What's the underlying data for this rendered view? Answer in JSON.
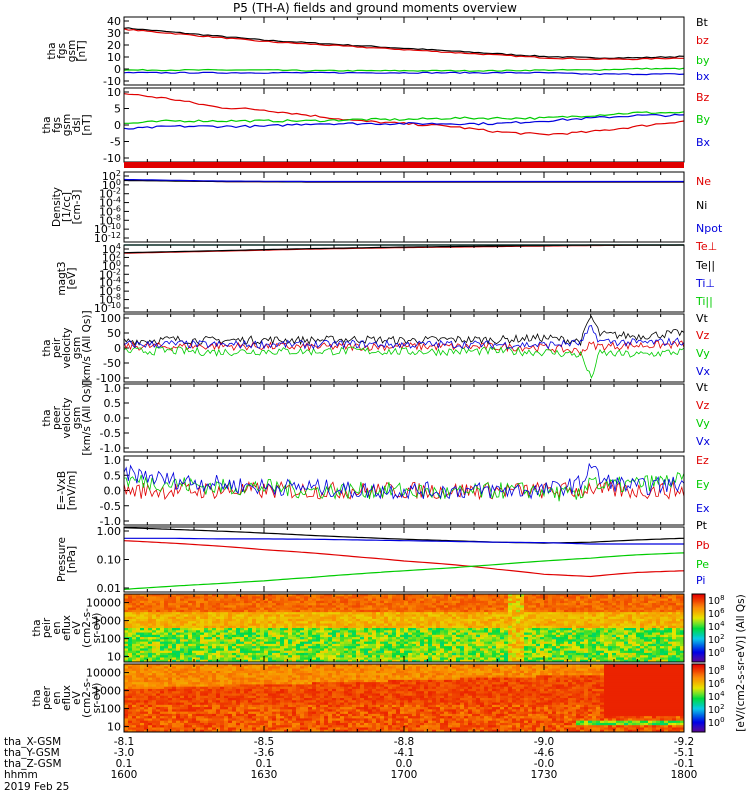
{
  "title": "P5 (TH-A) fields and ground moments overview",
  "colors": {
    "black": "#000000",
    "red": "#e00000",
    "green": "#00cc00",
    "blue": "#0000dd"
  },
  "chart_data": [
    {
      "type": "line",
      "id": "fgs_total",
      "ylabel": [
        "tha",
        "fgs",
        "gsm",
        "[nT]"
      ],
      "ylim": [
        -10,
        40
      ],
      "yticks": [
        "40",
        "30",
        "20",
        "10",
        "0",
        "-10"
      ],
      "legend": [
        "Bt",
        "bz",
        "by",
        "bx"
      ],
      "x": [
        0,
        10,
        20,
        30,
        40,
        50,
        60,
        70,
        80,
        90,
        100,
        110,
        120
      ],
      "series": [
        {
          "name": "Bt",
          "color": "#000000",
          "values": [
            32,
            29,
            26,
            23,
            21,
            19,
            17,
            15,
            13,
            11,
            10,
            10,
            11
          ]
        },
        {
          "name": "bz",
          "color": "#e00000",
          "values": [
            31,
            28,
            25,
            22,
            20,
            18,
            16,
            14,
            12,
            10,
            9,
            9,
            10
          ]
        },
        {
          "name": "by",
          "color": "#00cc00",
          "values": [
            1,
            1,
            1,
            1,
            0.5,
            0.5,
            0.5,
            0.5,
            0.5,
            1,
            1,
            2,
            2
          ]
        },
        {
          "name": "bx",
          "color": "#0000dd",
          "values": [
            -1,
            -1,
            -1,
            -1,
            -1,
            -1,
            -1,
            -1,
            -1,
            -1,
            -2,
            -2,
            -2
          ]
        }
      ]
    },
    {
      "type": "line",
      "id": "fgs_comp",
      "ylabel": [
        "tha",
        "fgs",
        "gsm",
        "dsl",
        "[nT]"
      ],
      "ylim": [
        -15,
        12
      ],
      "yticks": [
        "10",
        "5",
        "0",
        "-5",
        "-10"
      ],
      "legend": [
        "Bz",
        "By",
        "Bx"
      ],
      "x": [
        0,
        10,
        20,
        30,
        40,
        50,
        60,
        70,
        80,
        90,
        100,
        110,
        120
      ],
      "series": [
        {
          "name": "Bz",
          "color": "#e00000",
          "values": [
            10,
            8,
            5,
            4,
            2,
            0,
            -1,
            -2,
            -4,
            -5,
            -4,
            -2,
            0
          ]
        },
        {
          "name": "By",
          "color": "#00cc00",
          "values": [
            -1,
            0,
            0,
            0,
            0,
            0.5,
            0.5,
            1,
            1,
            1,
            2,
            3,
            3
          ]
        },
        {
          "name": "Bx",
          "color": "#0000dd",
          "values": [
            -3,
            -2,
            -2,
            -2,
            -1,
            -1,
            -1,
            -1,
            -1,
            0,
            1,
            2,
            2
          ]
        }
      ]
    },
    {
      "type": "line",
      "id": "density",
      "ylabel": [
        "Density",
        "[1/cc]",
        "[cm-3]"
      ],
      "ylim": [
        -12,
        2
      ],
      "yticks": [
        "10^2",
        "10^0",
        "10^-2",
        "10^-4",
        "10^-6",
        "10^-8",
        "10^-10",
        "10^-12"
      ],
      "legend": [
        "Ne",
        "Ni",
        "Npot"
      ],
      "x": [
        0,
        20,
        40,
        60,
        80,
        100,
        120
      ],
      "series": [
        {
          "name": "Ne",
          "color": "#e00000",
          "values": [
            0.4,
            0.1,
            0.0,
            0.0,
            0.0,
            0.0,
            0.0
          ]
        },
        {
          "name": "Ni",
          "color": "#000000",
          "values": [
            0.3,
            0.1,
            0.0,
            0.0,
            0.0,
            0.0,
            0.0
          ]
        },
        {
          "name": "Npot",
          "color": "#0000dd",
          "values": [
            0.5,
            0.2,
            0.1,
            0.1,
            0.1,
            0.1,
            0.1
          ]
        }
      ]
    },
    {
      "type": "line",
      "id": "temp",
      "ylabel": [
        "magt3",
        "[eV]"
      ],
      "ylim": [
        -10,
        3
      ],
      "yticks": [
        "10^4",
        "10^2",
        "10^0",
        "10^-2",
        "10^-4",
        "10^-6",
        "10^-8",
        "10^-10"
      ],
      "legend": [
        "Te⊥",
        "Te||",
        "Ti⊥",
        "Ti||"
      ],
      "x": [
        0,
        20,
        40,
        60,
        80,
        100,
        120
      ],
      "series": [
        {
          "name": "Te⊥",
          "color": "#e00000",
          "values": [
            1.4,
            1.8,
            2.2,
            2.5,
            2.7,
            2.9,
            3.0
          ]
        },
        {
          "name": "Te||",
          "color": "#000000",
          "values": [
            1.5,
            1.9,
            2.3,
            2.6,
            2.8,
            3.0,
            3.1
          ]
        },
        {
          "name": "Ti⊥",
          "color": "#0000dd",
          "values": [
            3.0,
            3.0,
            3.0,
            3.0,
            3.0,
            3.0,
            3.0
          ]
        },
        {
          "name": "Ti||",
          "color": "#00cc00",
          "values": [
            3.1,
            3.1,
            3.1,
            3.1,
            3.1,
            3.1,
            3.1
          ]
        }
      ]
    },
    {
      "type": "line",
      "id": "peir_vel",
      "ylabel": [
        "tha",
        "peir",
        "velocity",
        "gsm",
        "[km/s (All Qs)]"
      ],
      "ylim": [
        -100,
        100
      ],
      "yticks": [
        "100",
        "50",
        "0",
        "-50",
        "-100"
      ],
      "legend": [
        "Vt",
        "Vz",
        "Vy",
        "Vx"
      ],
      "x": [
        0,
        10,
        20,
        30,
        40,
        50,
        60,
        70,
        80,
        90,
        98,
        100,
        102,
        110,
        120
      ],
      "series": [
        {
          "name": "Vt",
          "color": "#000000",
          "values": [
            20,
            25,
            22,
            24,
            23,
            26,
            22,
            25,
            24,
            30,
            20,
            95,
            40,
            35,
            45
          ]
        },
        {
          "name": "Vz",
          "color": "#e00000",
          "values": [
            5,
            4,
            6,
            5,
            3,
            4,
            5,
            4,
            3,
            2,
            -10,
            10,
            5,
            8,
            10
          ]
        },
        {
          "name": "Vy",
          "color": "#00cc00",
          "values": [
            -10,
            -8,
            -12,
            -9,
            -10,
            -8,
            -11,
            -10,
            -9,
            -12,
            -20,
            -90,
            -15,
            -20,
            -10
          ]
        },
        {
          "name": "Vx",
          "color": "#0000dd",
          "values": [
            10,
            12,
            9,
            11,
            10,
            12,
            10,
            11,
            10,
            9,
            15,
            60,
            20,
            15,
            20
          ]
        }
      ]
    },
    {
      "type": "line",
      "id": "peer_vel",
      "ylabel": [
        "tha",
        "peer",
        "velocity",
        "gsm",
        "[km/s (All Qs)]"
      ],
      "ylim": [
        -1,
        1
      ],
      "yticks": [
        "1.0",
        "0.5",
        "0.0",
        "-0.5",
        "-1.0"
      ],
      "legend": [
        "Vt",
        "Vz",
        "Vy",
        "Vx"
      ],
      "x": [
        0,
        120
      ],
      "series": []
    },
    {
      "type": "line",
      "id": "efield",
      "ylabel": [
        "E=-VxB",
        "[mV/m]"
      ],
      "ylim": [
        -1,
        1
      ],
      "yticks": [
        "1.0",
        "0.5",
        "0.0",
        "-0.5",
        "-1.0"
      ],
      "legend": [
        "Ez",
        "Ey",
        "Ex"
      ],
      "x": [
        0,
        10,
        20,
        30,
        40,
        50,
        60,
        70,
        80,
        90,
        98,
        100,
        102,
        110,
        120
      ],
      "series": [
        {
          "name": "Ez",
          "color": "#e00000",
          "values": [
            0,
            0,
            0,
            0,
            0,
            0,
            0,
            0,
            0,
            0,
            0,
            0.1,
            0,
            0,
            0
          ]
        },
        {
          "name": "Ey",
          "color": "#00cc00",
          "values": [
            0.3,
            0.2,
            0.1,
            0.1,
            0.0,
            0.0,
            0.0,
            -0.1,
            0.0,
            0.0,
            -0.2,
            0.5,
            0.1,
            0.2,
            0.3
          ]
        },
        {
          "name": "Ex",
          "color": "#0000dd",
          "values": [
            0.5,
            0.3,
            0.2,
            0.1,
            0.1,
            0.0,
            0.0,
            0.0,
            0.0,
            0.0,
            0.2,
            0.8,
            0.3,
            0.1,
            0.2
          ]
        }
      ]
    },
    {
      "type": "line",
      "id": "pressure",
      "ylabel": [
        "Pressure",
        "[nPa]"
      ],
      "ylim": [
        -2,
        0
      ],
      "log": true,
      "yticks": [
        "1.00",
        "0.10",
        "0.01"
      ],
      "legend": [
        "Pt",
        "Pb",
        "Pe",
        "Pi"
      ],
      "x": [
        0,
        10,
        20,
        30,
        40,
        50,
        60,
        70,
        80,
        90,
        100,
        110,
        120
      ],
      "series": [
        {
          "name": "Pt",
          "color": "#000000",
          "values": [
            0.95,
            0.85,
            0.75,
            0.65,
            0.55,
            0.48,
            0.42,
            0.38,
            0.34,
            0.32,
            0.34,
            0.4,
            0.45
          ]
        },
        {
          "name": "Pb",
          "color": "#e00000",
          "values": [
            0.38,
            0.32,
            0.26,
            0.2,
            0.16,
            0.12,
            0.09,
            0.07,
            0.05,
            0.035,
            0.03,
            0.04,
            0.045
          ]
        },
        {
          "name": "Pe",
          "color": "#00cc00",
          "values": [
            0.012,
            0.015,
            0.018,
            0.022,
            0.028,
            0.036,
            0.045,
            0.055,
            0.07,
            0.09,
            0.11,
            0.14,
            0.16
          ]
        },
        {
          "name": "Pi",
          "color": "#0000dd",
          "values": [
            0.45,
            0.45,
            0.43,
            0.43,
            0.42,
            0.4,
            0.38,
            0.36,
            0.34,
            0.33,
            0.3,
            0.3,
            0.3
          ]
        }
      ]
    },
    {
      "type": "heatmap",
      "id": "peir_spec",
      "ylabel": [
        "tha",
        "peir",
        "en",
        "eflux",
        "eV",
        "(cm2-s-",
        "sr-eV)"
      ],
      "ylim": [
        5,
        30000
      ],
      "yticks": [
        "10000",
        "1000",
        "100",
        "10"
      ]
    },
    {
      "type": "heatmap",
      "id": "peer_spec",
      "ylabel": [
        "tha",
        "peer",
        "en",
        "eflux",
        "eV",
        "(cm2-s-",
        "sr-eV)"
      ],
      "ylim": [
        5,
        30000
      ],
      "yticks": [
        "10000",
        "1000",
        "100",
        "10"
      ]
    }
  ],
  "colorbar": {
    "ticks": [
      "10^8",
      "10^6",
      "10^4",
      "10^2",
      "10^0",
      "10^8",
      "10^6",
      "10^4",
      "10^2",
      "10^0"
    ],
    "label": "[eV/(cm2-s-sr-eV)] (All Qs)"
  },
  "xaxis": {
    "rows": [
      {
        "label": "tha_X-GSM",
        "values": [
          "-8.1",
          "-8.5",
          "-8.8",
          "-9.0",
          "-9.2"
        ]
      },
      {
        "label": "tha_Y-GSM",
        "values": [
          "-3.0",
          "-3.6",
          "-4.1",
          "-4.6",
          "-5.1"
        ]
      },
      {
        "label": "tha_Z-GSM",
        "values": [
          "0.1",
          "0.1",
          "0.0",
          "-0.0",
          "-0.1"
        ]
      },
      {
        "label": "hhmm",
        "values": [
          "1600",
          "1630",
          "1700",
          "1730",
          "1800"
        ]
      }
    ],
    "date": "2019 Feb 25"
  }
}
